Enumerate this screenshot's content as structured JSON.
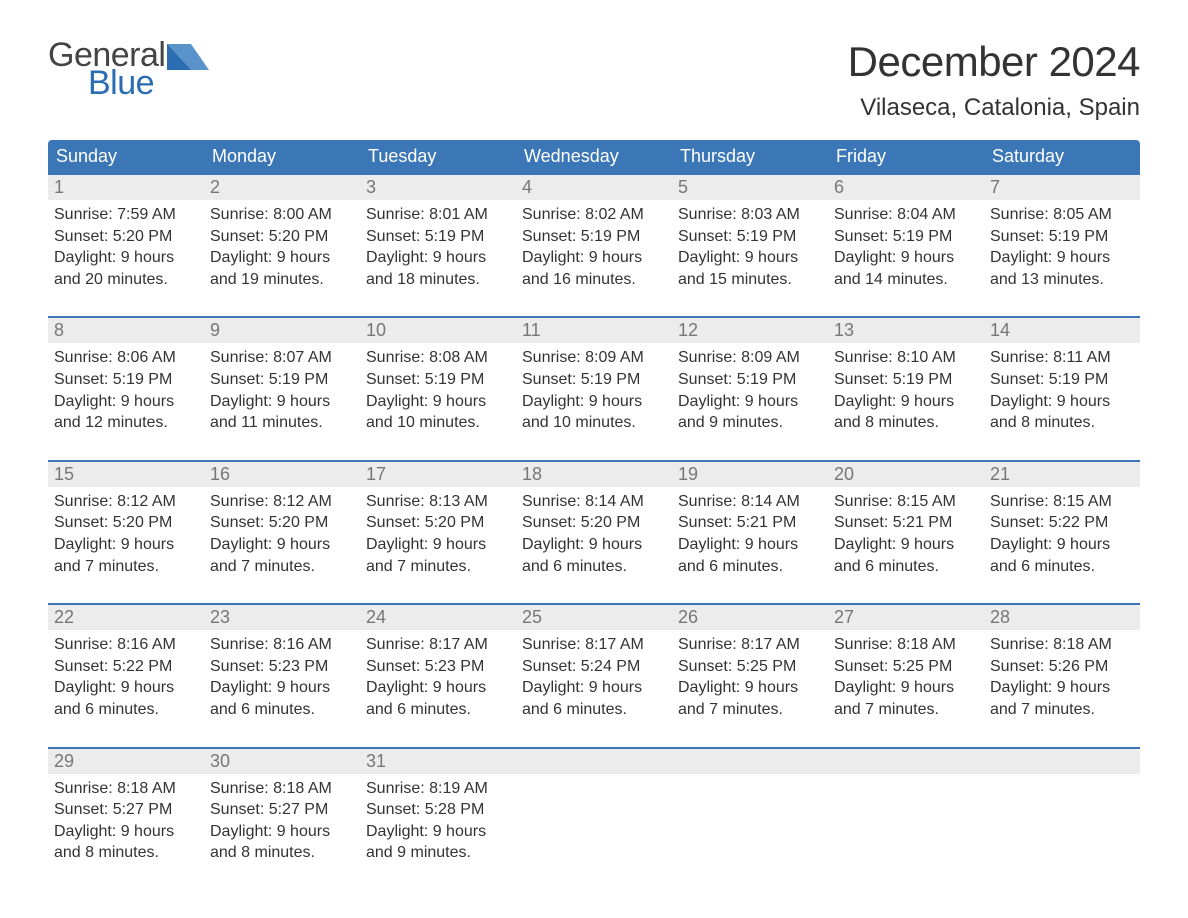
{
  "logo": {
    "line1": "General",
    "line2": "Blue",
    "flag_color": "#2a6db3"
  },
  "title": "December 2024",
  "location": "Vilaseca, Catalonia, Spain",
  "colors": {
    "header_bg": "#3b77b7",
    "header_text": "#ffffff",
    "daynum_bg": "#ececec",
    "daynum_text": "#777777",
    "row_border": "#3b77b7",
    "body_text": "#333333",
    "logo_gray": "#444444"
  },
  "fonts": {
    "title_pt": 42,
    "location_pt": 24,
    "header_pt": 18,
    "daynum_pt": 18,
    "data_pt": 16
  },
  "day_labels": [
    "Sunday",
    "Monday",
    "Tuesday",
    "Wednesday",
    "Thursday",
    "Friday",
    "Saturday"
  ],
  "weeks": [
    [
      {
        "n": "1",
        "sunrise": "7:59 AM",
        "sunset": "5:20 PM",
        "daylight": "9 hours and 20 minutes."
      },
      {
        "n": "2",
        "sunrise": "8:00 AM",
        "sunset": "5:20 PM",
        "daylight": "9 hours and 19 minutes."
      },
      {
        "n": "3",
        "sunrise": "8:01 AM",
        "sunset": "5:19 PM",
        "daylight": "9 hours and 18 minutes."
      },
      {
        "n": "4",
        "sunrise": "8:02 AM",
        "sunset": "5:19 PM",
        "daylight": "9 hours and 16 minutes."
      },
      {
        "n": "5",
        "sunrise": "8:03 AM",
        "sunset": "5:19 PM",
        "daylight": "9 hours and 15 minutes."
      },
      {
        "n": "6",
        "sunrise": "8:04 AM",
        "sunset": "5:19 PM",
        "daylight": "9 hours and 14 minutes."
      },
      {
        "n": "7",
        "sunrise": "8:05 AM",
        "sunset": "5:19 PM",
        "daylight": "9 hours and 13 minutes."
      }
    ],
    [
      {
        "n": "8",
        "sunrise": "8:06 AM",
        "sunset": "5:19 PM",
        "daylight": "9 hours and 12 minutes."
      },
      {
        "n": "9",
        "sunrise": "8:07 AM",
        "sunset": "5:19 PM",
        "daylight": "9 hours and 11 minutes."
      },
      {
        "n": "10",
        "sunrise": "8:08 AM",
        "sunset": "5:19 PM",
        "daylight": "9 hours and 10 minutes."
      },
      {
        "n": "11",
        "sunrise": "8:09 AM",
        "sunset": "5:19 PM",
        "daylight": "9 hours and 10 minutes."
      },
      {
        "n": "12",
        "sunrise": "8:09 AM",
        "sunset": "5:19 PM",
        "daylight": "9 hours and 9 minutes."
      },
      {
        "n": "13",
        "sunrise": "8:10 AM",
        "sunset": "5:19 PM",
        "daylight": "9 hours and 8 minutes."
      },
      {
        "n": "14",
        "sunrise": "8:11 AM",
        "sunset": "5:19 PM",
        "daylight": "9 hours and 8 minutes."
      }
    ],
    [
      {
        "n": "15",
        "sunrise": "8:12 AM",
        "sunset": "5:20 PM",
        "daylight": "9 hours and 7 minutes."
      },
      {
        "n": "16",
        "sunrise": "8:12 AM",
        "sunset": "5:20 PM",
        "daylight": "9 hours and 7 minutes."
      },
      {
        "n": "17",
        "sunrise": "8:13 AM",
        "sunset": "5:20 PM",
        "daylight": "9 hours and 7 minutes."
      },
      {
        "n": "18",
        "sunrise": "8:14 AM",
        "sunset": "5:20 PM",
        "daylight": "9 hours and 6 minutes."
      },
      {
        "n": "19",
        "sunrise": "8:14 AM",
        "sunset": "5:21 PM",
        "daylight": "9 hours and 6 minutes."
      },
      {
        "n": "20",
        "sunrise": "8:15 AM",
        "sunset": "5:21 PM",
        "daylight": "9 hours and 6 minutes."
      },
      {
        "n": "21",
        "sunrise": "8:15 AM",
        "sunset": "5:22 PM",
        "daylight": "9 hours and 6 minutes."
      }
    ],
    [
      {
        "n": "22",
        "sunrise": "8:16 AM",
        "sunset": "5:22 PM",
        "daylight": "9 hours and 6 minutes."
      },
      {
        "n": "23",
        "sunrise": "8:16 AM",
        "sunset": "5:23 PM",
        "daylight": "9 hours and 6 minutes."
      },
      {
        "n": "24",
        "sunrise": "8:17 AM",
        "sunset": "5:23 PM",
        "daylight": "9 hours and 6 minutes."
      },
      {
        "n": "25",
        "sunrise": "8:17 AM",
        "sunset": "5:24 PM",
        "daylight": "9 hours and 6 minutes."
      },
      {
        "n": "26",
        "sunrise": "8:17 AM",
        "sunset": "5:25 PM",
        "daylight": "9 hours and 7 minutes."
      },
      {
        "n": "27",
        "sunrise": "8:18 AM",
        "sunset": "5:25 PM",
        "daylight": "9 hours and 7 minutes."
      },
      {
        "n": "28",
        "sunrise": "8:18 AM",
        "sunset": "5:26 PM",
        "daylight": "9 hours and 7 minutes."
      }
    ],
    [
      {
        "n": "29",
        "sunrise": "8:18 AM",
        "sunset": "5:27 PM",
        "daylight": "9 hours and 8 minutes."
      },
      {
        "n": "30",
        "sunrise": "8:18 AM",
        "sunset": "5:27 PM",
        "daylight": "9 hours and 8 minutes."
      },
      {
        "n": "31",
        "sunrise": "8:19 AM",
        "sunset": "5:28 PM",
        "daylight": "9 hours and 9 minutes."
      },
      null,
      null,
      null,
      null
    ]
  ],
  "labels": {
    "sunrise": "Sunrise: ",
    "sunset": "Sunset: ",
    "daylight": "Daylight: "
  }
}
